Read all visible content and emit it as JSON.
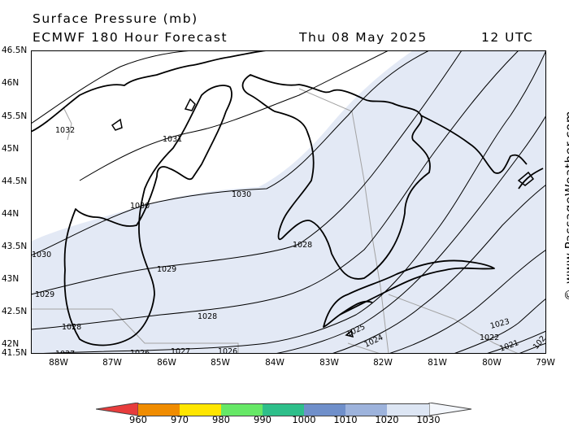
{
  "header": {
    "title": "Surface Pressure (mb)",
    "model": "ECMWF 180 Hour Forecast",
    "date": "Thu 08 May 2025",
    "time": "12 UTC"
  },
  "watermark": "© www.PassageWeather.com",
  "axes": {
    "lat_labels": [
      "46.5N",
      "46N",
      "45.5N",
      "45N",
      "44.5N",
      "44N",
      "43.5N",
      "43N",
      "42.5N",
      "42N",
      "41.5N"
    ],
    "lon_labels": [
      "88W",
      "87W",
      "86W",
      "85W",
      "84W",
      "83W",
      "82W",
      "81W",
      "80W",
      "79W"
    ]
  },
  "isobar_labels": [
    "1032",
    "1031",
    "1030",
    "1030",
    "1030",
    "1029",
    "1029",
    "1028",
    "1028",
    "1028",
    "1027",
    "1027",
    "1026",
    "1026",
    "1025",
    "1024",
    "1023",
    "1022",
    "1021",
    "102"
  ],
  "colorbar": {
    "labels": [
      "960",
      "970",
      "980",
      "990",
      "1000",
      "1010",
      "1020",
      "1030"
    ],
    "colors": [
      "#e83c3c",
      "#f08c00",
      "#ffe600",
      "#66e866",
      "#2ebf8a",
      "#6f8fca",
      "#9db3dc",
      "#dde6f4"
    ]
  },
  "colors": {
    "shading": "#e3e9f5",
    "land": "#ffffff",
    "border": "#a0a0a0"
  }
}
